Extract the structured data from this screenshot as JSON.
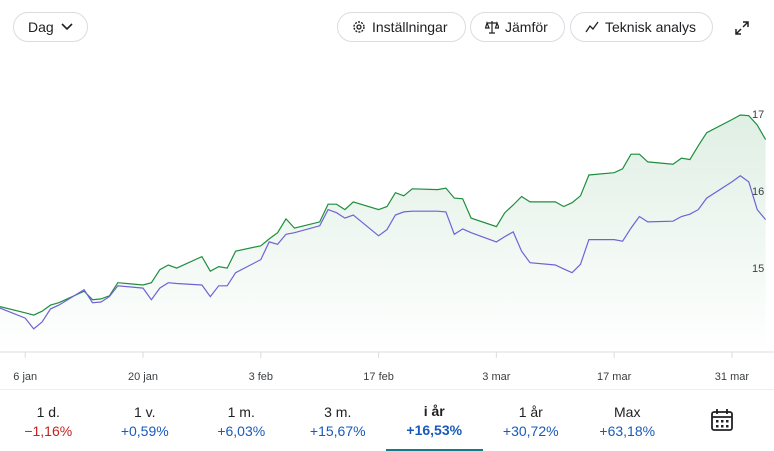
{
  "toolbar": {
    "range": "Dag",
    "buttons": [
      "Inställningar",
      "Jämför",
      "Teknisk analys"
    ]
  },
  "chart_data": {
    "type": "line",
    "x": [
      3,
      6,
      7,
      8,
      9,
      10,
      13,
      14,
      15,
      16,
      17,
      20,
      21,
      22,
      23,
      24,
      27,
      28,
      29,
      30,
      31,
      34,
      35,
      36,
      37,
      38,
      41,
      42,
      43,
      44,
      45,
      48,
      49,
      50,
      51,
      52,
      55,
      56,
      57,
      58,
      59,
      62,
      63,
      64,
      65,
      66,
      69,
      70,
      71,
      72,
      73,
      76,
      77,
      78,
      79,
      80,
      83,
      84,
      85,
      86,
      87,
      90,
      91,
      92,
      93,
      94
    ],
    "series": [
      {
        "color": "#1e8e3e",
        "area": true,
        "values": [
          14.51,
          14.43,
          14.4,
          14.45,
          14.53,
          14.56,
          14.71,
          14.6,
          14.61,
          14.65,
          14.82,
          14.79,
          14.82,
          14.99,
          15.05,
          15.01,
          15.16,
          14.97,
          15.03,
          15.01,
          15.23,
          15.3,
          15.39,
          15.47,
          15.65,
          15.53,
          15.61,
          15.84,
          15.84,
          15.77,
          15.87,
          15.77,
          15.81,
          15.99,
          15.95,
          16.04,
          16.03,
          16.05,
          15.92,
          15.91,
          15.66,
          15.55,
          15.73,
          15.83,
          15.94,
          15.87,
          15.87,
          15.81,
          15.86,
          15.95,
          16.22,
          16.25,
          16.3,
          16.49,
          16.49,
          16.39,
          16.36,
          16.44,
          16.42,
          16.6,
          16.77,
          16.94,
          17.0,
          16.99,
          16.87,
          16.68
        ]
      },
      {
        "color": "#6f63d6",
        "area": false,
        "values": [
          14.49,
          14.36,
          14.22,
          14.31,
          14.48,
          14.53,
          14.73,
          14.56,
          14.57,
          14.64,
          14.78,
          14.75,
          14.6,
          14.75,
          14.82,
          14.81,
          14.79,
          14.64,
          14.78,
          14.78,
          14.95,
          15.12,
          15.35,
          15.32,
          15.45,
          15.47,
          15.56,
          15.77,
          15.73,
          15.66,
          15.7,
          15.43,
          15.51,
          15.7,
          15.74,
          15.75,
          15.75,
          15.74,
          15.45,
          15.52,
          15.47,
          15.35,
          15.42,
          15.48,
          15.23,
          15.08,
          15.05,
          15.0,
          14.95,
          15.06,
          15.38,
          15.38,
          15.36,
          15.53,
          15.68,
          15.61,
          15.62,
          15.68,
          15.71,
          15.77,
          15.92,
          16.13,
          16.21,
          16.13,
          15.77,
          15.64
        ]
      }
    ],
    "xlim": [
      3,
      95
    ],
    "xticks": [
      {
        "value": 6,
        "label": "6 jan"
      },
      {
        "value": 20,
        "label": "20 jan"
      },
      {
        "value": 34,
        "label": "3 feb"
      },
      {
        "value": 48,
        "label": "17 feb"
      },
      {
        "value": 62,
        "label": "3 mar"
      },
      {
        "value": 76,
        "label": "17 mar"
      },
      {
        "value": 90,
        "label": "31 mar"
      }
    ],
    "ylim": [
      13.92,
      18
    ],
    "yticks": [
      15,
      16,
      17
    ],
    "grid": false
  },
  "periods": [
    {
      "label": "1 d.",
      "change": "−1,16%"
    },
    {
      "label": "1 v.",
      "change": "+0,59%"
    },
    {
      "label": "1 m.",
      "change": "+6,03%"
    },
    {
      "label": "3 m.",
      "change": "+15,67%"
    },
    {
      "label": "i år",
      "change": "+16,53%",
      "selected": true
    },
    {
      "label": "1 år",
      "change": "+30,72%"
    },
    {
      "label": "Max",
      "change": "+63,18%"
    }
  ]
}
